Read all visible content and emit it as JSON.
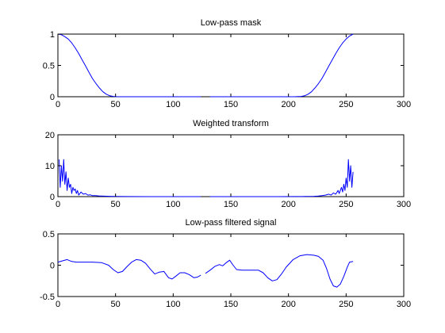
{
  "figure": {
    "background": "#ffffff",
    "line_color": "#0000ff"
  },
  "chart_data": [
    {
      "type": "line",
      "title": "Low-pass mask",
      "xlabel": "",
      "ylabel": "",
      "xlim": [
        0,
        300
      ],
      "ylim": [
        0,
        1
      ],
      "xticks": [
        0,
        50,
        100,
        150,
        200,
        250,
        300
      ],
      "xtick_labels": [
        "0",
        "50",
        "100",
        "150",
        "200",
        "250",
        "300"
      ],
      "yticks": [
        0,
        0.5,
        1
      ],
      "ytick_labels": [
        "0",
        "0.5",
        "1"
      ],
      "grid": false,
      "series": [
        {
          "segments": [
            [
              [
                0,
                1.0
              ],
              [
                3,
                0.99
              ],
              [
                6,
                0.96
              ],
              [
                9,
                0.92
              ],
              [
                12,
                0.86
              ],
              [
                15,
                0.78
              ],
              [
                18,
                0.69
              ],
              [
                21,
                0.59
              ],
              [
                24,
                0.49
              ],
              [
                27,
                0.39
              ],
              [
                30,
                0.29
              ],
              [
                33,
                0.21
              ],
              [
                36,
                0.14
              ],
              [
                39,
                0.08
              ],
              [
                42,
                0.04
              ],
              [
                45,
                0.015
              ],
              [
                48,
                0.005
              ],
              [
                52,
                0.0
              ],
              [
                60,
                0.0
              ],
              [
                80,
                0.0
              ],
              [
                100,
                0.0
              ],
              [
                120,
                0.0
              ],
              [
                124,
                0.0
              ]
            ],
            [
              [
                132,
                0.0
              ],
              [
                150,
                0.0
              ],
              [
                170,
                0.0
              ],
              [
                190,
                0.0
              ],
              [
                205,
                0.0
              ],
              [
                211,
                0.005
              ],
              [
                214,
                0.015
              ],
              [
                217,
                0.04
              ],
              [
                220,
                0.08
              ],
              [
                223,
                0.14
              ],
              [
                226,
                0.21
              ],
              [
                229,
                0.29
              ],
              [
                232,
                0.39
              ],
              [
                235,
                0.49
              ],
              [
                238,
                0.59
              ],
              [
                241,
                0.69
              ],
              [
                244,
                0.78
              ],
              [
                247,
                0.86
              ],
              [
                250,
                0.92
              ],
              [
                253,
                0.97
              ],
              [
                256,
                1.0
              ]
            ]
          ]
        }
      ]
    },
    {
      "type": "line",
      "title": "Weighted transform",
      "xlabel": "",
      "ylabel": "",
      "xlim": [
        0,
        300
      ],
      "ylim": [
        0,
        20
      ],
      "xticks": [
        0,
        50,
        100,
        150,
        200,
        250,
        300
      ],
      "xtick_labels": [
        "0",
        "50",
        "100",
        "150",
        "200",
        "250",
        "300"
      ],
      "yticks": [
        0,
        10,
        20
      ],
      "ytick_labels": [
        "0",
        "10",
        "20"
      ],
      "grid": false,
      "series": [
        {
          "segments": [
            [
              [
                1,
                12
              ],
              [
                2,
                3
              ],
              [
                3,
                10
              ],
              [
                4,
                5
              ],
              [
                5,
                12
              ],
              [
                6,
                4
              ],
              [
                7,
                8
              ],
              [
                8,
                2
              ],
              [
                9,
                6
              ],
              [
                10,
                3
              ],
              [
                11,
                4
              ],
              [
                12,
                1
              ],
              [
                13,
                3
              ],
              [
                14,
                2
              ],
              [
                15,
                2.5
              ],
              [
                16,
                1
              ],
              [
                17,
                2
              ],
              [
                18,
                0.5
              ],
              [
                20,
                1.5
              ],
              [
                22,
                0.8
              ],
              [
                24,
                1
              ],
              [
                26,
                0.5
              ],
              [
                28,
                0.6
              ],
              [
                30,
                0.3
              ],
              [
                33,
                0.3
              ],
              [
                36,
                0.2
              ],
              [
                40,
                0.15
              ],
              [
                45,
                0.1
              ],
              [
                50,
                0.05
              ],
              [
                60,
                0.02
              ],
              [
                80,
                0.0
              ],
              [
                100,
                0.0
              ],
              [
                115,
                0.0
              ],
              [
                124,
                0.0
              ]
            ],
            [
              [
                132,
                0.0
              ],
              [
                150,
                0.0
              ],
              [
                170,
                0.0
              ],
              [
                190,
                0.0
              ],
              [
                205,
                0.02
              ],
              [
                215,
                0.05
              ],
              [
                222,
                0.1
              ],
              [
                226,
                0.2
              ],
              [
                229,
                0.3
              ],
              [
                232,
                0.5
              ],
              [
                235,
                0.8
              ],
              [
                237,
                0.5
              ],
              [
                239,
                1.2
              ],
              [
                241,
                0.8
              ],
              [
                243,
                2
              ],
              [
                244,
                1
              ],
              [
                246,
                3
              ],
              [
                247,
                1.5
              ],
              [
                248,
                4
              ],
              [
                249,
                2
              ],
              [
                250,
                6
              ],
              [
                251,
                3
              ],
              [
                252,
                12
              ],
              [
                253,
                5
              ],
              [
                254,
                10
              ],
              [
                255,
                3
              ],
              [
                256,
                8
              ]
            ]
          ]
        }
      ]
    },
    {
      "type": "line",
      "title": "Low-pass filtered signal",
      "xlabel": "",
      "ylabel": "",
      "xlim": [
        0,
        300
      ],
      "ylim": [
        -0.5,
        0.5
      ],
      "xticks": [
        0,
        50,
        100,
        150,
        200,
        250,
        300
      ],
      "xtick_labels": [
        "0",
        "50",
        "100",
        "150",
        "200",
        "250",
        "300"
      ],
      "yticks": [
        -0.5,
        0,
        0.5
      ],
      "ytick_labels": [
        "-0.5",
        "0",
        "0.5"
      ],
      "grid": false,
      "series": [
        {
          "segments": [
            [
              [
                0,
                0.05
              ],
              [
                4,
                0.07
              ],
              [
                8,
                0.09
              ],
              [
                12,
                0.06
              ],
              [
                16,
                0.05
              ],
              [
                20,
                0.05
              ],
              [
                30,
                0.05
              ],
              [
                38,
                0.04
              ],
              [
                44,
                0.0
              ],
              [
                48,
                -0.07
              ],
              [
                52,
                -0.12
              ],
              [
                56,
                -0.1
              ],
              [
                60,
                -0.02
              ],
              [
                64,
                0.05
              ],
              [
                68,
                0.09
              ],
              [
                72,
                0.08
              ],
              [
                76,
                0.03
              ],
              [
                80,
                -0.06
              ],
              [
                84,
                -0.14
              ],
              [
                88,
                -0.11
              ],
              [
                92,
                -0.1
              ],
              [
                96,
                -0.2
              ],
              [
                99,
                -0.22
              ],
              [
                102,
                -0.18
              ],
              [
                106,
                -0.12
              ],
              [
                110,
                -0.12
              ],
              [
                114,
                -0.15
              ],
              [
                118,
                -0.2
              ],
              [
                121,
                -0.19
              ],
              [
                124,
                -0.16
              ]
            ],
            [
              [
                128,
                -0.13
              ],
              [
                132,
                -0.08
              ],
              [
                136,
                -0.02
              ],
              [
                140,
                0.01
              ],
              [
                143,
                -0.01
              ],
              [
                146,
                0.04
              ],
              [
                149,
                0.08
              ],
              [
                152,
                0.0
              ],
              [
                155,
                -0.07
              ],
              [
                160,
                -0.08
              ],
              [
                168,
                -0.08
              ],
              [
                174,
                -0.08
              ],
              [
                178,
                -0.12
              ],
              [
                182,
                -0.2
              ],
              [
                186,
                -0.25
              ],
              [
                190,
                -0.23
              ],
              [
                194,
                -0.14
              ],
              [
                198,
                -0.03
              ],
              [
                204,
                0.09
              ],
              [
                210,
                0.15
              ],
              [
                216,
                0.17
              ],
              [
                222,
                0.16
              ],
              [
                226,
                0.14
              ],
              [
                230,
                0.08
              ],
              [
                233,
                -0.05
              ],
              [
                236,
                -0.22
              ],
              [
                239,
                -0.33
              ],
              [
                242,
                -0.35
              ],
              [
                245,
                -0.3
              ],
              [
                248,
                -0.18
              ],
              [
                251,
                -0.03
              ],
              [
                253,
                0.05
              ],
              [
                256,
                0.06
              ]
            ]
          ]
        }
      ]
    }
  ]
}
